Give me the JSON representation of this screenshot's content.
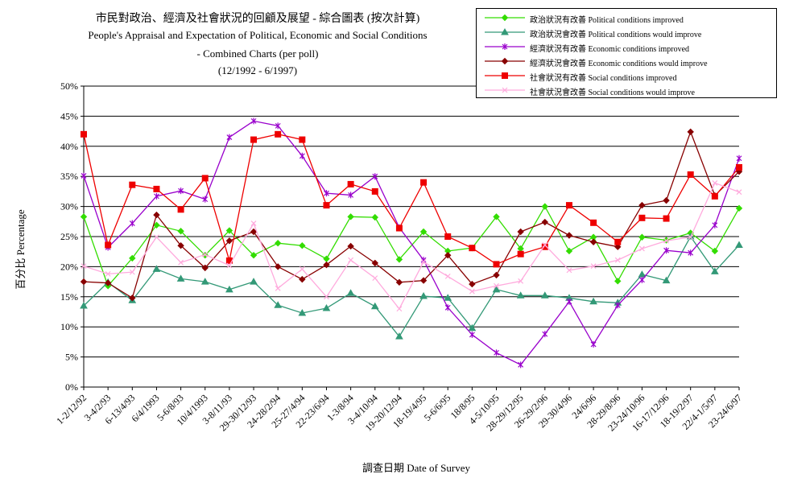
{
  "chart_data": {
    "type": "line",
    "title": "市民對政治、經濟及社會狀況的回顧及展望 - 綜合圖表 (按次計算)",
    "subtitle_lines": [
      "People's Appraisal and Expectation of Political, Economic and Social Conditions",
      "-  Combined Charts  (per poll)",
      "(12/1992 - 6/1997)"
    ],
    "xlabel": "調查日期 Date of Survey",
    "ylabel": "百分比 Percentage",
    "ylim": [
      0,
      50
    ],
    "y_ticks": [
      "0%",
      "5%",
      "10%",
      "15%",
      "20%",
      "25%",
      "30%",
      "35%",
      "40%",
      "45%",
      "50%"
    ],
    "grid": "horizontal",
    "legend_position": "top-right",
    "categories": [
      "1-2/12/92",
      "3-4/2/93",
      "6-13/4/93",
      "6/4/1993",
      "5-6/8/93",
      "10/4/1993",
      "3-8/11/93",
      "29-30/12/93",
      "24-28/2/94",
      "25-27/4/94",
      "22-23/6/94",
      "1-3/8/94",
      "3-4/10/94",
      "19-20/12/94",
      "18-19/4/95",
      "5-6/6/95",
      "18/8/95",
      "4-5/10/95",
      "28-29/12/95",
      "26-29/2/96",
      "29-30/4/96",
      "24/6/96",
      "28-29/8/96",
      "23-24/10/96",
      "16-17/12/96",
      "18-19/2/97",
      "22/4-1/5/97",
      "23-24/6/97"
    ],
    "series": [
      {
        "name": "政治狀況有改善 Political conditions improved",
        "color": "#33dd00",
        "marker": "diamond",
        "values": [
          28.3,
          16.8,
          21.4,
          26.9,
          25.9,
          21.9,
          26.0,
          21.9,
          23.9,
          23.5,
          21.3,
          28.3,
          28.2,
          21.2,
          25.8,
          22.6,
          23.1,
          28.3,
          23.0,
          30.0,
          22.6,
          24.9,
          17.6,
          24.9,
          24.4,
          25.6,
          22.6,
          29.7
        ]
      },
      {
        "name": "政治狀況會改善 Political conditions would improve",
        "color": "#339977",
        "marker": "triangle",
        "values": [
          13.5,
          17.4,
          14.4,
          19.6,
          18.0,
          17.5,
          16.2,
          17.5,
          13.6,
          12.3,
          13.1,
          15.6,
          13.4,
          8.4,
          15.1,
          14.8,
          9.8,
          16.2,
          15.2,
          15.2,
          14.8,
          14.2,
          14.0,
          18.7,
          17.7,
          25.0,
          19.2,
          23.6
        ]
      },
      {
        "name": "經濟狀況有改善 Economic conditions improved",
        "color": "#9900cc",
        "marker": "star",
        "values": [
          35.1,
          23.2,
          27.2,
          31.7,
          32.6,
          31.2,
          41.5,
          44.2,
          43.4,
          38.4,
          32.2,
          31.9,
          35.0,
          26.5,
          21.1,
          13.2,
          8.7,
          5.7,
          3.7,
          8.8,
          14.2,
          7.1,
          13.6,
          17.8,
          22.7,
          22.3,
          26.9,
          38.0
        ]
      },
      {
        "name": "經濟狀況會改善 Economic conditions would improve",
        "color": "#880000",
        "marker": "diamond",
        "values": [
          17.5,
          17.3,
          14.8,
          28.6,
          23.5,
          19.8,
          24.3,
          25.8,
          20.0,
          17.9,
          20.3,
          23.4,
          20.6,
          17.4,
          17.7,
          21.9,
          17.1,
          18.6,
          25.8,
          27.4,
          25.2,
          24.1,
          23.3,
          30.2,
          31.0,
          42.4,
          31.8,
          35.8
        ]
      },
      {
        "name": "社會狀況有改善 Social conditions improved",
        "color": "#ee0000",
        "marker": "square",
        "values": [
          42.0,
          23.6,
          33.6,
          32.9,
          29.5,
          34.7,
          21.0,
          41.1,
          42.0,
          41.1,
          30.2,
          33.7,
          32.5,
          26.4,
          34.0,
          25.0,
          23.1,
          20.4,
          22.1,
          23.3,
          30.2,
          27.3,
          24.1,
          28.1,
          28.0,
          35.3,
          31.7,
          36.5
        ]
      },
      {
        "name": "社會狀況會改善 Social conditions would improve",
        "color": "#ffaadd",
        "marker": "x",
        "values": [
          20.1,
          18.8,
          19.1,
          24.9,
          20.7,
          22.0,
          20.2,
          27.2,
          16.4,
          19.6,
          15.0,
          21.1,
          18.1,
          13.0,
          20.8,
          18.4,
          15.9,
          16.8,
          17.6,
          23.6,
          19.4,
          20.1,
          21.1,
          23.0,
          24.3,
          24.9,
          33.9,
          32.4
        ]
      }
    ]
  }
}
